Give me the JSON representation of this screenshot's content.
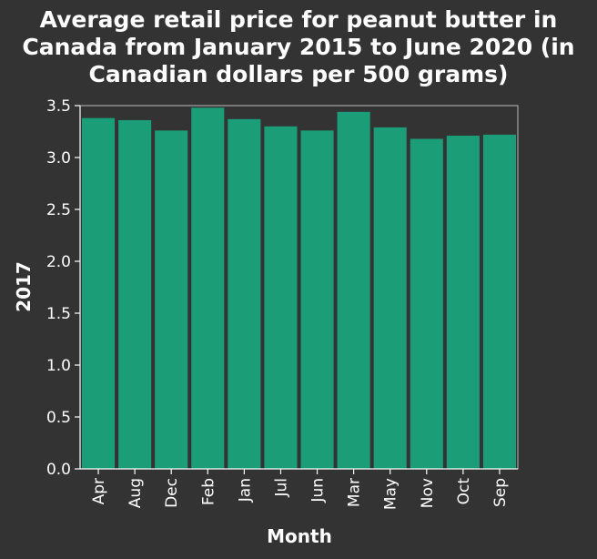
{
  "chart_data": {
    "type": "bar",
    "title_lines": [
      "Average retail price for peanut butter in",
      "Canada from January 2015 to June 2020 (in",
      "Canadian dollars per 500 grams)"
    ],
    "xlabel": "Month",
    "ylabel": "2017",
    "categories": [
      "Apr",
      "Aug",
      "Dec",
      "Feb",
      "Jan",
      "Jul",
      "Jun",
      "Mar",
      "May",
      "Nov",
      "Oct",
      "Sep"
    ],
    "values": [
      3.38,
      3.36,
      3.26,
      3.48,
      3.37,
      3.3,
      3.26,
      3.44,
      3.29,
      3.18,
      3.21,
      3.22
    ],
    "ylim": [
      0,
      3.5
    ],
    "yticks": [
      "0.0",
      "0.5",
      "1.0",
      "1.5",
      "2.0",
      "2.5",
      "3.0",
      "3.5"
    ],
    "grid": false,
    "colors": {
      "bar": "#1b9e77",
      "background": "#333333",
      "text": "#ffffff",
      "axis": "#ffffff"
    }
  }
}
